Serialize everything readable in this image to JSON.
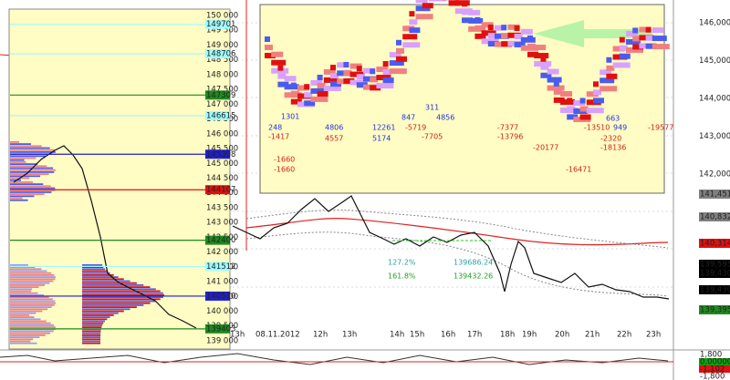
{
  "left_panel": {
    "scale_labels": [
      "150 000",
      "149 500",
      "149 000",
      "148 500",
      "148 000",
      "147 500",
      "147 000",
      "146 500",
      "146 000",
      "145 500",
      "145 000",
      "144 500",
      "144 000",
      "143 500",
      "143 000",
      "142 500",
      "142 000",
      "141 500",
      "141 000",
      "140 500",
      "140 000",
      "139 500",
      "139 000"
    ],
    "level_tags": [
      {
        "text": "149701",
        "color": "#9ffcff"
      },
      {
        "text": "148706",
        "color": "#9ffcff"
      },
      {
        "text": "147309",
        "color": "#1f8a1f"
      },
      {
        "text": "146615",
        "color": "#9ffcff"
      },
      {
        "text": "145308",
        "color": "#1f1fd0"
      },
      {
        "text": "144107",
        "color": "#e01010"
      },
      {
        "text": "142400",
        "color": "#1f8a1f"
      },
      {
        "text": "141512",
        "color": "#9ffcff"
      },
      {
        "text": "140510",
        "color": "#1f1fd0"
      },
      {
        "text": "139403",
        "color": "#1f8a1f"
      }
    ]
  },
  "main_chart": {
    "price_labels": [
      "146,000",
      "145,000",
      "144,000",
      "143,000",
      "142,000"
    ],
    "price_tags": [
      {
        "text": "141,451",
        "color": "#808080"
      },
      {
        "text": "140,832",
        "color": "#808080"
      },
      {
        "text": "140,314",
        "color": "#e01010"
      },
      {
        "text": "139,595",
        "color": "#000000"
      },
      {
        "text": "139,430",
        "color": "#000000"
      },
      {
        "text": "139,430",
        "color": "#000000"
      },
      {
        "text": "139,395",
        "color": "#1f8a1f"
      }
    ],
    "time_labels": [
      "13h",
      "08.11.2012",
      "12h",
      "13h",
      "14h",
      "15h",
      "16h",
      "17h",
      "18h",
      "19h",
      "20h",
      "21h",
      "22h",
      "23h"
    ],
    "fib_labels": [
      "127.2%",
      "161.8%",
      "139686.24",
      "139432.26"
    ],
    "indicator_labels": [
      {
        "text": "1,800",
        "color": "#ffffff"
      },
      {
        "text": "0.00000",
        "color": "#10a010"
      },
      {
        "text": "-1,102",
        "color": "#e01010"
      },
      {
        "text": "-1,800",
        "color": "#ffffff"
      }
    ]
  },
  "inset": {
    "labels": [
      {
        "text": "248",
        "color": "#2233dd"
      },
      {
        "text": "-1417",
        "color": "#d02020"
      },
      {
        "text": "-1660",
        "color": "#d02020"
      },
      {
        "text": "-1660",
        "color": "#d02020"
      },
      {
        "text": "1301",
        "color": "#2233dd"
      },
      {
        "text": "4806",
        "color": "#2233dd"
      },
      {
        "text": "4557",
        "color": "#d02020"
      },
      {
        "text": "12261",
        "color": "#2233dd"
      },
      {
        "text": "5174",
        "color": "#2233dd"
      },
      {
        "text": "847",
        "color": "#2233dd"
      },
      {
        "text": "4856",
        "color": "#2233dd"
      },
      {
        "text": "311",
        "color": "#2233dd"
      },
      {
        "text": "-5719",
        "color": "#d02020"
      },
      {
        "text": "-7705",
        "color": "#d02020"
      },
      {
        "text": "-7377",
        "color": "#d02020"
      },
      {
        "text": "-13796",
        "color": "#d02020"
      },
      {
        "text": "-20177",
        "color": "#d02020"
      },
      {
        "text": "-16471",
        "color": "#d02020"
      },
      {
        "text": "663",
        "color": "#2233dd"
      },
      {
        "text": "-13510",
        "color": "#d02020"
      },
      {
        "text": "949",
        "color": "#2233dd"
      },
      {
        "text": "-2320",
        "color": "#d02020"
      },
      {
        "text": "-18136",
        "color": "#d02020"
      },
      {
        "text": "-19577",
        "color": "#d02020"
      }
    ]
  }
}
